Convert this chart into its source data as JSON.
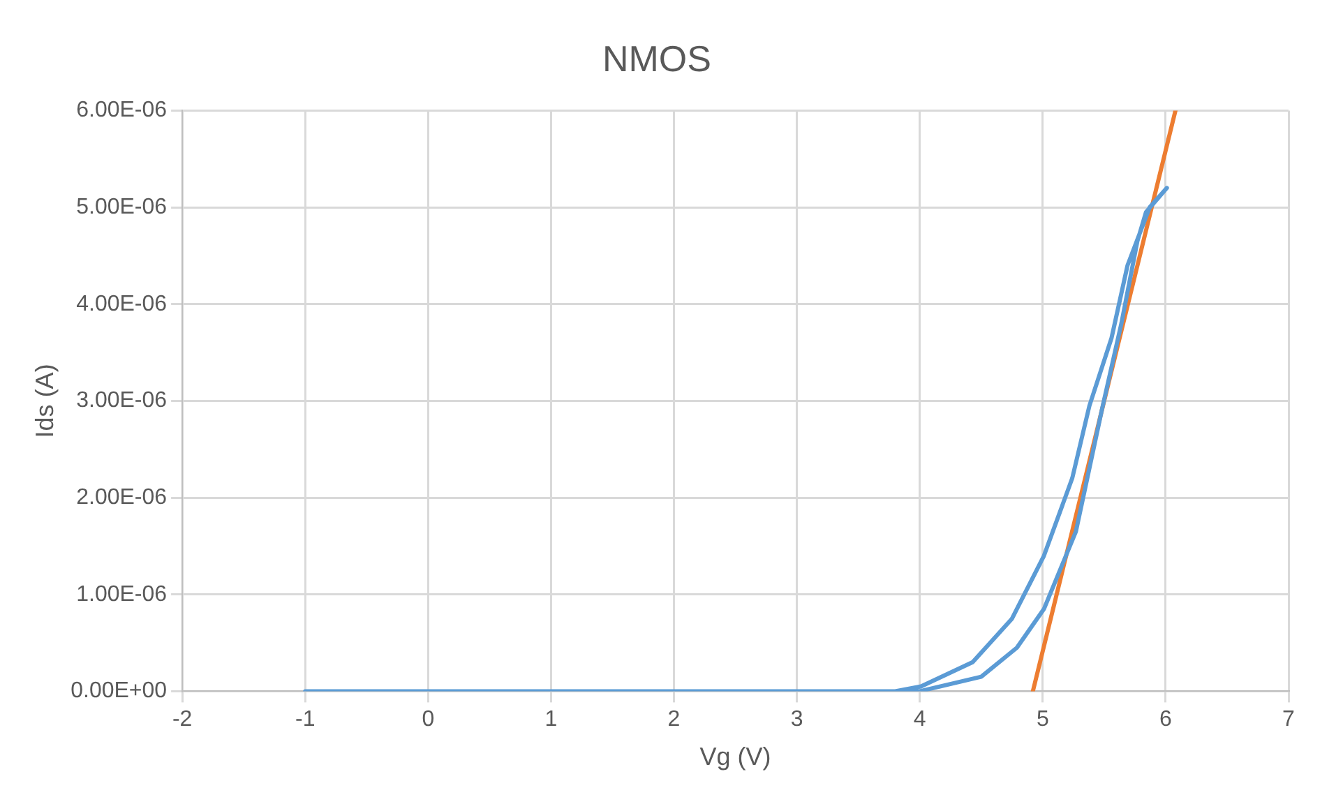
{
  "chart_data": {
    "type": "line",
    "title": "NMOS",
    "xlabel": "Vg (V)",
    "ylabel": "Ids (A)",
    "xlim": [
      -2,
      7
    ],
    "xticks": [
      -2,
      -1,
      0,
      1,
      2,
      3,
      4,
      5,
      6,
      7
    ],
    "ylim": [
      0,
      6e-06
    ],
    "yticks": [
      {
        "value": 0,
        "label": "0.00E+00"
      },
      {
        "value": 1e-06,
        "label": "1.00E-06"
      },
      {
        "value": 2e-06,
        "label": "2.00E-06"
      },
      {
        "value": 3e-06,
        "label": "3.00E-06"
      },
      {
        "value": 4e-06,
        "label": "4.00E-06"
      },
      {
        "value": 5e-06,
        "label": "5.00E-06"
      },
      {
        "value": 6e-06,
        "label": "6.00E-06"
      }
    ],
    "grid": true,
    "marker": "none",
    "line_style": "solid",
    "series": [
      {
        "color": "#5b9bd5",
        "x": [
          -1,
          0,
          1,
          2,
          3,
          3.5,
          3.8,
          4.01,
          4.43,
          4.75,
          5.01,
          5.24,
          5.38,
          5.56,
          5.69,
          5.87,
          6.01,
          5.84,
          5.77,
          5.64,
          5.48,
          5.27,
          5.01,
          4.79,
          4.5,
          4.0,
          3.5
        ],
        "values": [
          0,
          0,
          0,
          0,
          0,
          0,
          0,
          5e-08,
          3e-07,
          7.5e-07,
          1.4e-06,
          2.2e-06,
          2.95e-06,
          3.65e-06,
          4.4e-06,
          5e-06,
          5.2e-06,
          4.95e-06,
          4.65e-06,
          3.8e-06,
          2.9e-06,
          1.65e-06,
          8.5e-07,
          4.5e-07,
          1.5e-07,
          0,
          0
        ]
      },
      {
        "type": "line",
        "color": "#ed7d31",
        "x": [
          4.92,
          6.08
        ],
        "values": [
          0,
          6e-06
        ]
      }
    ]
  }
}
